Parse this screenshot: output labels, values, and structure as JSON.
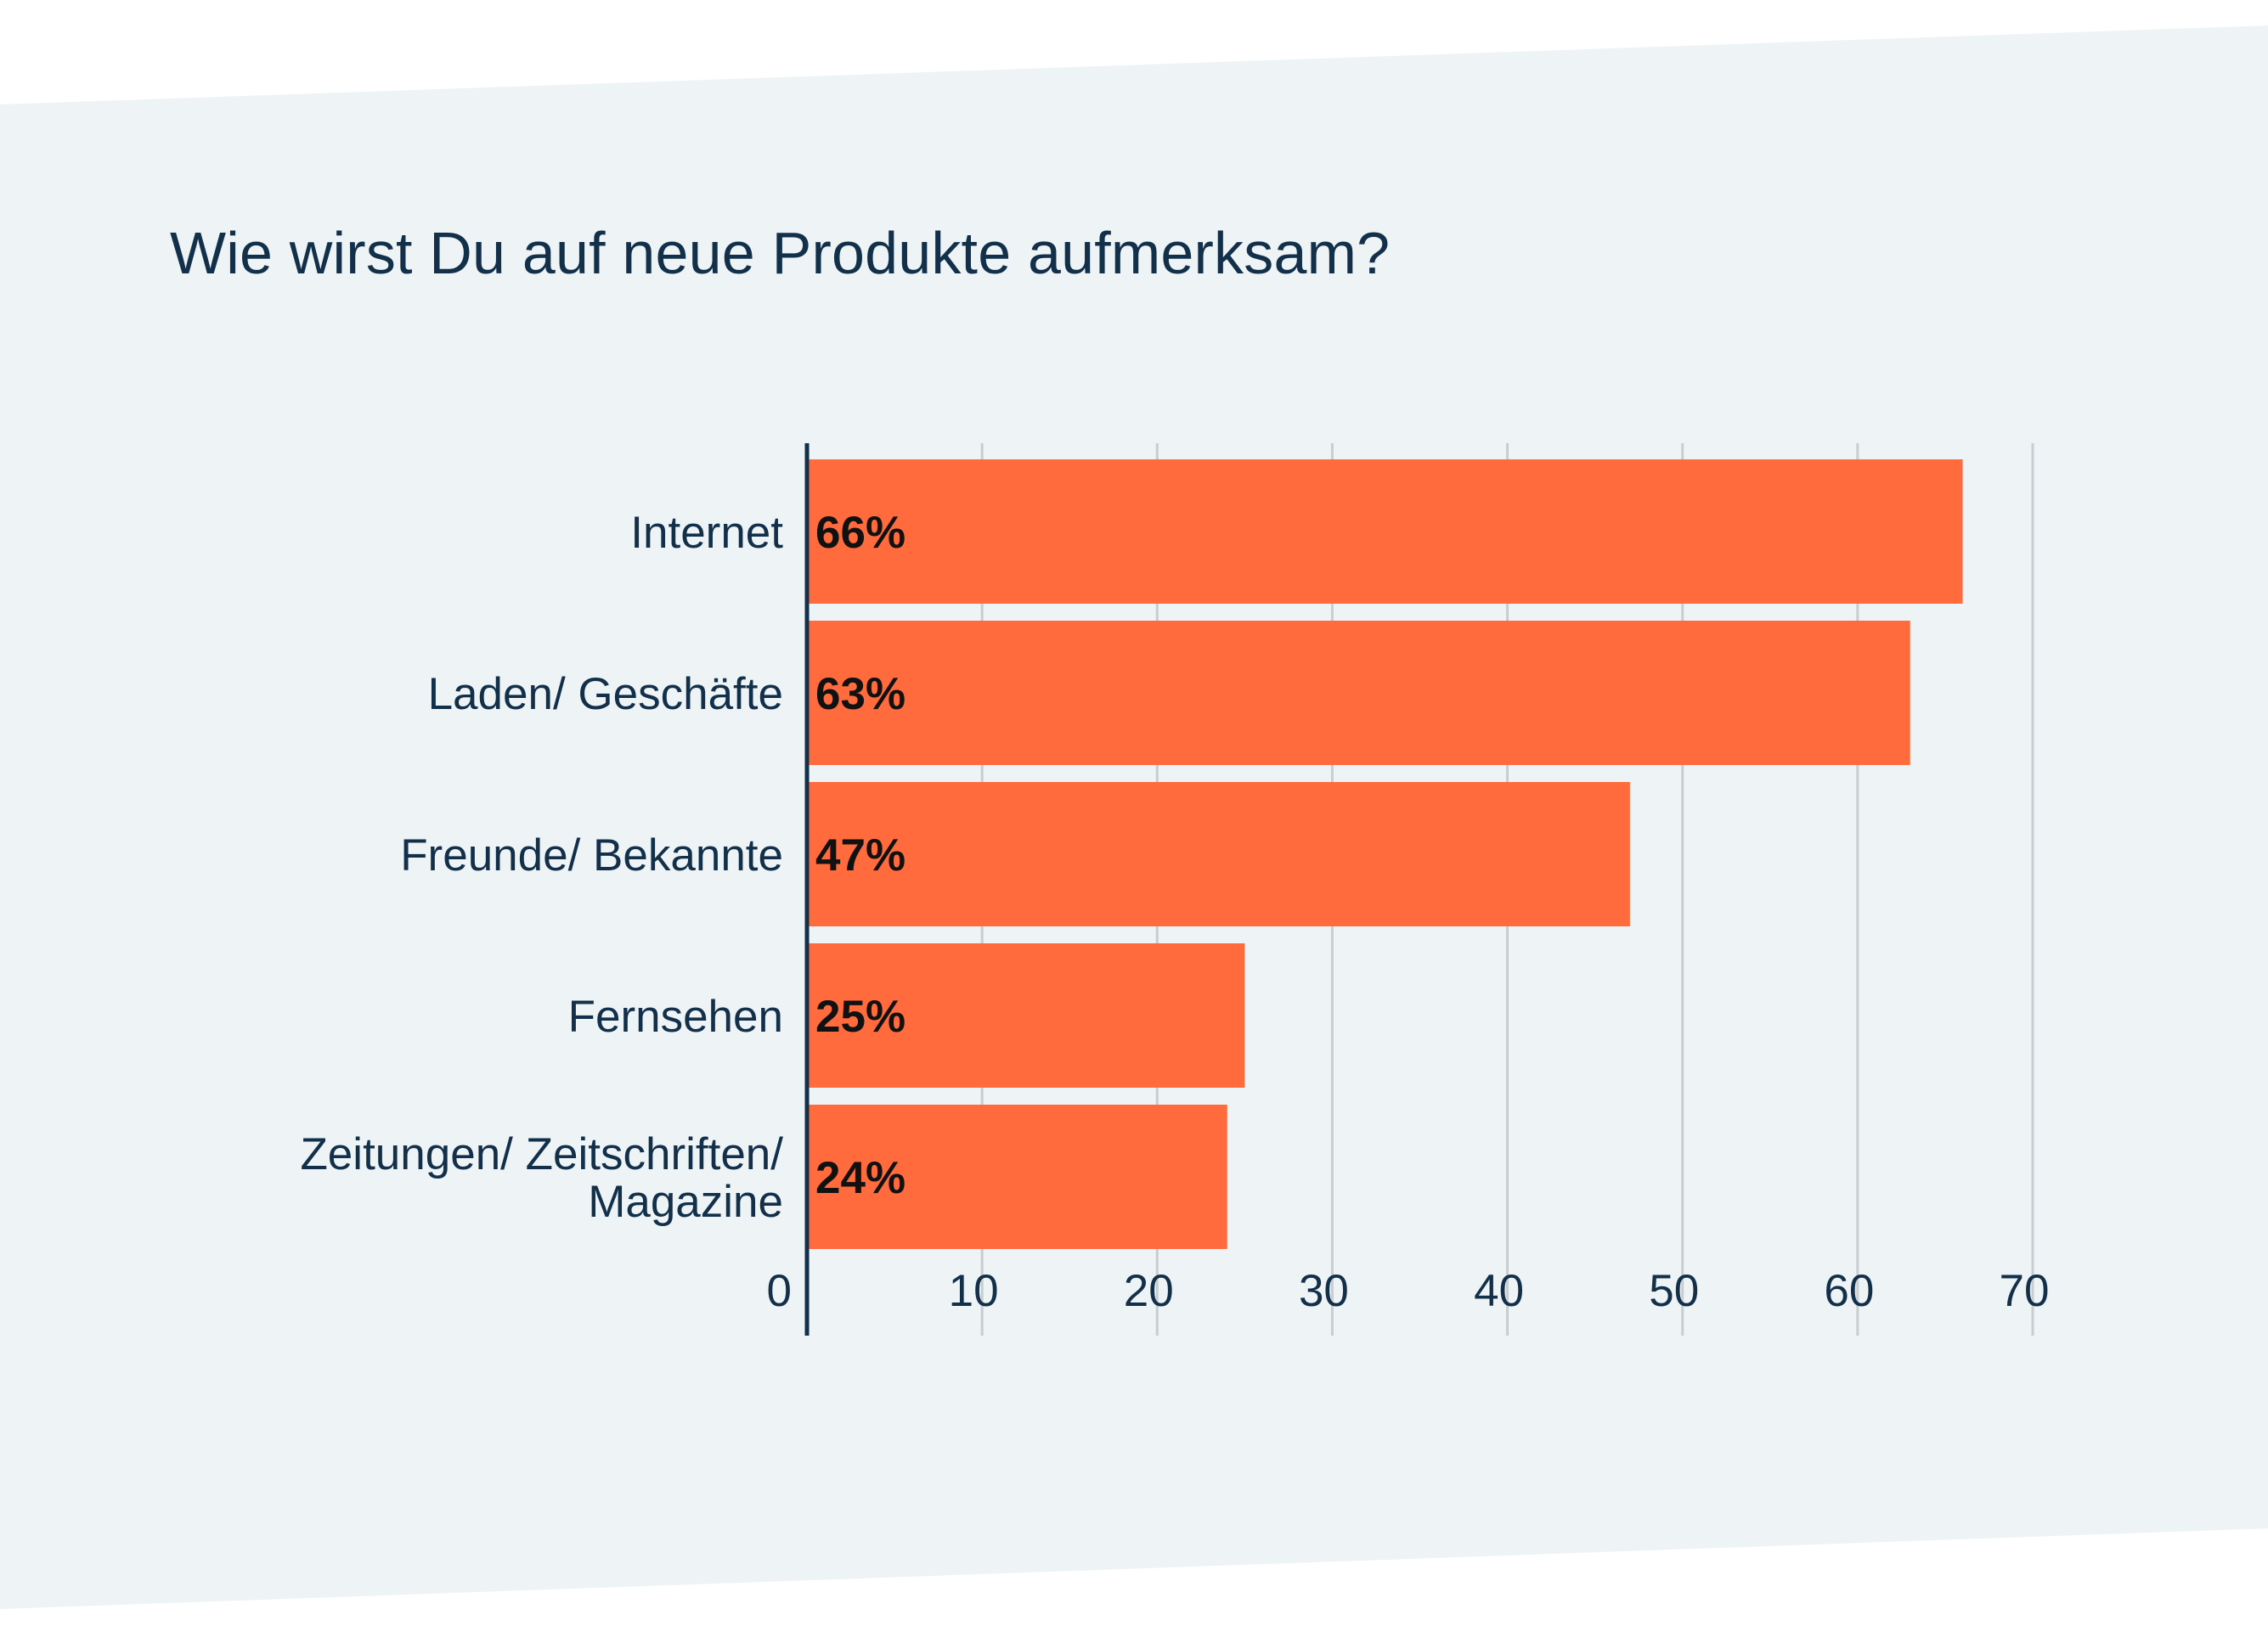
{
  "chart_data": {
    "type": "bar",
    "orientation": "horizontal",
    "title": "Wie wirst Du auf neue Produkte aufmerksam?",
    "categories": [
      [
        "Internet"
      ],
      [
        "Laden/ Geschäfte"
      ],
      [
        "Freunde/ Bekannte"
      ],
      [
        "Fernsehen"
      ],
      [
        "Zeitungen/ Zeitschriften/",
        "Magazine"
      ]
    ],
    "values": [
      66,
      63,
      47,
      25,
      24
    ],
    "data_labels": [
      "66%",
      "63%",
      "47%",
      "25%",
      "24%"
    ],
    "xlim": [
      0,
      70
    ],
    "xticks": [
      "0",
      "10",
      "20",
      "30",
      "40",
      "50",
      "60",
      "70"
    ],
    "xlabel": "",
    "ylabel": "",
    "grid": true,
    "legend": "none",
    "colors": {
      "bar": "#ff6b3d",
      "text": "#13304a",
      "grid": "#c8cdd2",
      "axis": "#13304a",
      "panel": "#eef3f6"
    }
  }
}
